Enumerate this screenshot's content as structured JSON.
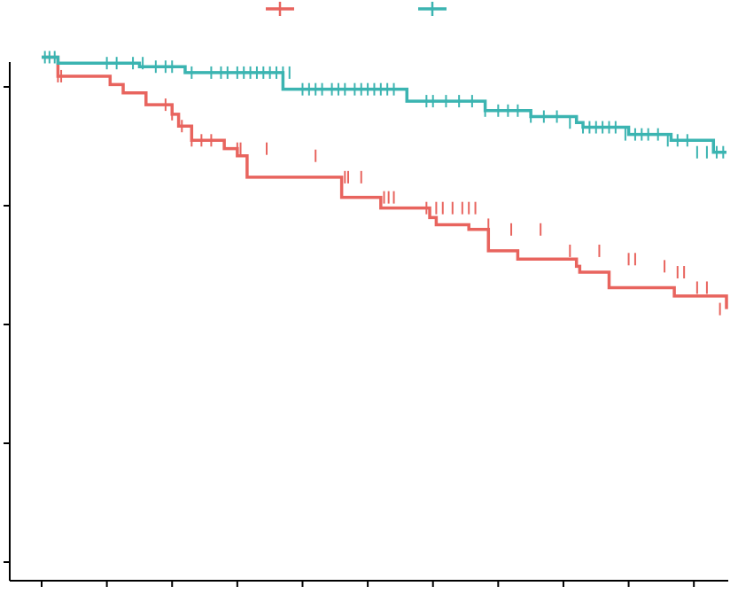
{
  "chart_data": {
    "type": "line",
    "step": true,
    "title": "",
    "xlabel": "",
    "ylabel": "",
    "xlim": [
      0,
      10.5
    ],
    "ylim": [
      0.52,
      1.005
    ],
    "x_ticks": [
      0,
      1,
      2,
      3,
      4,
      5,
      6,
      7,
      8,
      9,
      10
    ],
    "y_ticks": [
      0.55,
      0.65,
      0.75,
      0.85,
      0.95
    ],
    "tick_labels_visible": false,
    "grid": false,
    "legend": {
      "placement": "top-center",
      "marker": "line-with-plus"
    },
    "series": [
      {
        "color": "#E8645E",
        "steps": [
          [
            0,
            0.975
          ],
          [
            0.25,
            0.959
          ],
          [
            1.05,
            0.952
          ],
          [
            1.25,
            0.945
          ],
          [
            1.6,
            0.935
          ],
          [
            2.0,
            0.927
          ],
          [
            2.1,
            0.917
          ],
          [
            2.3,
            0.905
          ],
          [
            2.8,
            0.898
          ],
          [
            3.0,
            0.892
          ],
          [
            3.15,
            0.874
          ],
          [
            3.65,
            0.874
          ],
          [
            4.6,
            0.857
          ],
          [
            5.2,
            0.848
          ],
          [
            5.95,
            0.84
          ],
          [
            6.05,
            0.834
          ],
          [
            6.55,
            0.83
          ],
          [
            6.85,
            0.812
          ],
          [
            7.3,
            0.805
          ],
          [
            8.2,
            0.799
          ],
          [
            8.25,
            0.794
          ],
          [
            8.7,
            0.781
          ],
          [
            9.7,
            0.774
          ],
          [
            9.75,
            0.774
          ],
          [
            10.5,
            0.763
          ],
          [
            10.5,
            0.763
          ]
        ],
        "censor_x": [
          0.25,
          0.3,
          1.9,
          2.0,
          2.15,
          2.3,
          2.45,
          2.6,
          3.0,
          3.05,
          3.45,
          4.2,
          4.65,
          4.7,
          4.9,
          5.25,
          5.32,
          5.4,
          5.9,
          6.05,
          6.15,
          6.3,
          6.45,
          6.55,
          6.65,
          6.85,
          7.2,
          7.65,
          8.1,
          8.55,
          9.0,
          9.1,
          9.55,
          9.75,
          9.85,
          10.05,
          10.2,
          10.4
        ],
        "censor_y": [
          0.959,
          0.959,
          0.935,
          0.927,
          0.917,
          0.905,
          0.905,
          0.905,
          0.898,
          0.898,
          0.898,
          0.892,
          0.874,
          0.874,
          0.874,
          0.857,
          0.857,
          0.857,
          0.848,
          0.848,
          0.848,
          0.848,
          0.848,
          0.848,
          0.848,
          0.834,
          0.83,
          0.83,
          0.812,
          0.812,
          0.805,
          0.805,
          0.799,
          0.794,
          0.794,
          0.781,
          0.781,
          0.763
        ]
      },
      {
        "color": "#3BB4B1",
        "steps": [
          [
            0,
            0.975
          ],
          [
            0.25,
            0.97
          ],
          [
            1.5,
            0.967
          ],
          [
            2.2,
            0.962
          ],
          [
            3.7,
            0.948
          ],
          [
            4.1,
            0.948
          ],
          [
            5.6,
            0.938
          ],
          [
            6.8,
            0.93
          ],
          [
            7.5,
            0.925
          ],
          [
            8.2,
            0.92
          ],
          [
            8.3,
            0.916
          ],
          [
            9.0,
            0.91
          ],
          [
            9.65,
            0.905
          ],
          [
            10.3,
            0.895
          ],
          [
            10.5,
            0.895
          ]
        ],
        "censor_x": [
          0.05,
          0.12,
          0.2,
          1.0,
          1.15,
          1.4,
          1.55,
          1.75,
          1.9,
          2.0,
          2.3,
          2.6,
          2.75,
          2.85,
          3.0,
          3.1,
          3.2,
          3.3,
          3.4,
          3.5,
          3.6,
          3.7,
          3.8,
          4.0,
          4.1,
          4.2,
          4.3,
          4.45,
          4.55,
          4.65,
          4.8,
          4.9,
          5.0,
          5.1,
          5.2,
          5.3,
          5.4,
          5.9,
          6.0,
          6.2,
          6.4,
          6.6,
          6.8,
          7.0,
          7.15,
          7.3,
          7.5,
          7.7,
          7.9,
          8.1,
          8.3,
          8.4,
          8.5,
          8.6,
          8.7,
          8.8,
          8.95,
          9.1,
          9.2,
          9.3,
          9.45,
          9.6,
          9.75,
          9.9,
          10.05,
          10.2,
          10.35,
          10.45
        ],
        "censor_y": [
          0.975,
          0.975,
          0.975,
          0.97,
          0.97,
          0.97,
          0.97,
          0.967,
          0.967,
          0.967,
          0.962,
          0.962,
          0.962,
          0.962,
          0.962,
          0.962,
          0.962,
          0.962,
          0.962,
          0.962,
          0.962,
          0.962,
          0.962,
          0.948,
          0.948,
          0.948,
          0.948,
          0.948,
          0.948,
          0.948,
          0.948,
          0.948,
          0.948,
          0.948,
          0.948,
          0.948,
          0.948,
          0.938,
          0.938,
          0.938,
          0.938,
          0.938,
          0.93,
          0.93,
          0.93,
          0.93,
          0.925,
          0.925,
          0.925,
          0.92,
          0.916,
          0.916,
          0.916,
          0.916,
          0.916,
          0.916,
          0.91,
          0.91,
          0.91,
          0.91,
          0.91,
          0.905,
          0.905,
          0.905,
          0.895,
          0.895,
          0.895,
          0.895
        ]
      }
    ]
  }
}
